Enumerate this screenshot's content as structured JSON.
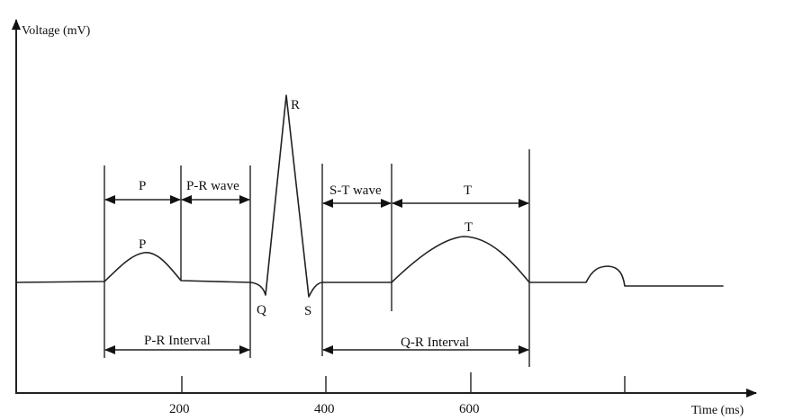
{
  "axes": {
    "y_title": "Voltage (mV)",
    "x_title": "Time (ms)",
    "x_ticks": [
      {
        "label": "200",
        "value": 200
      },
      {
        "label": "400",
        "value": 400
      },
      {
        "label": "600",
        "value": 600
      },
      {
        "label": "",
        "value": 800
      }
    ]
  },
  "waves": {
    "p": "P",
    "q": "Q",
    "r": "R",
    "s": "S",
    "t": "T"
  },
  "segments": {
    "p": "P",
    "pr_wave": "P-R wave",
    "st_wave": "S-T wave",
    "t": "T"
  },
  "intervals": {
    "pr": "P-R Interval",
    "qr": "Q-R Interval"
  }
}
